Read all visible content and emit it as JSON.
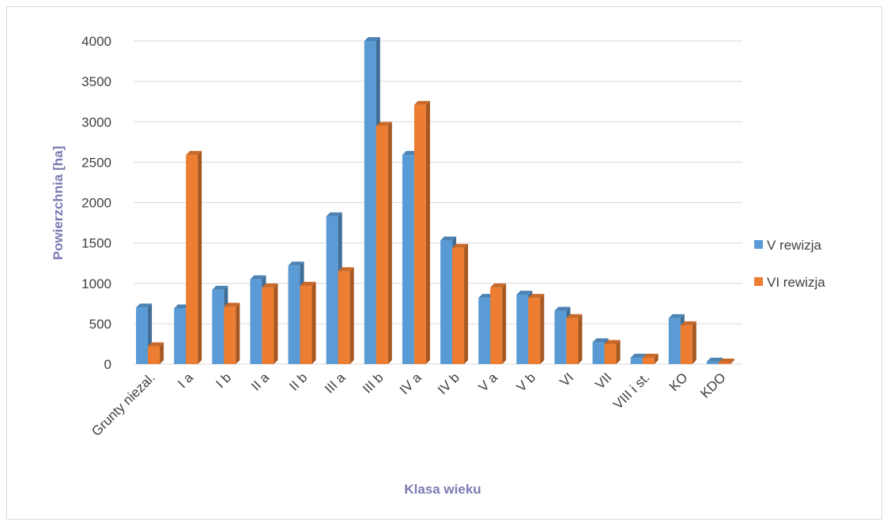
{
  "chart_data": {
    "type": "bar",
    "title": "",
    "xlabel": "Klasa wieku",
    "ylabel": "Powierzchnia [ha]",
    "ylim": [
      0,
      4000
    ],
    "yticks": [
      0,
      500,
      1000,
      1500,
      2000,
      2500,
      3000,
      3500,
      4000
    ],
    "grid": true,
    "legend_position": "right",
    "categories": [
      "Grunty niezal.",
      "I a",
      "I b",
      "II a",
      "II b",
      "III a",
      "III b",
      "IV a",
      "IV b",
      "V a",
      "V b",
      "VI",
      "VII",
      "VIII i st.",
      "KO",
      "KDO"
    ],
    "series": [
      {
        "name": "V rewizja",
        "color": "#5b9bd5",
        "values": [
          700,
          690,
          920,
          1050,
          1220,
          1830,
          4000,
          2590,
          1530,
          820,
          860,
          660,
          270,
          80,
          570,
          30
        ]
      },
      {
        "name": "VI rewizja",
        "color": "#ed7d31",
        "values": [
          220,
          2590,
          710,
          950,
          970,
          1150,
          2950,
          3210,
          1440,
          950,
          820,
          570,
          250,
          80,
          480,
          20
        ]
      }
    ]
  }
}
